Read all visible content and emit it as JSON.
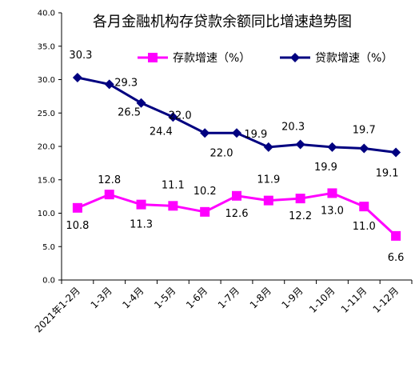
{
  "chart_data": {
    "type": "line",
    "title": "各月金融机构存贷款余额同比增速趋势图",
    "categories": [
      "2021年1-2月",
      "1-3月",
      "1-4月",
      "1-5月",
      "1-6月",
      "1-7月",
      "1-8月",
      "1-9月",
      "1-10月",
      "1-11月",
      "1-12月"
    ],
    "ylim": [
      0,
      40
    ],
    "yticks": [
      "0.0",
      "5.0",
      "10.0",
      "15.0",
      "20.0",
      "25.0",
      "30.0",
      "35.0",
      "40.0"
    ],
    "series": [
      {
        "name": "存款增速（%）",
        "color": "#ff00ff",
        "marker": "square",
        "values": [
          10.8,
          12.8,
          11.3,
          11.1,
          10.2,
          12.6,
          11.9,
          12.2,
          13.0,
          11.0,
          6.6
        ],
        "labels": [
          "10.8",
          "12.8",
          "11.3",
          "11.1",
          "10.2",
          "12.6",
          "11.9",
          "12.2",
          "13.0",
          "11.0",
          "6.6"
        ]
      },
      {
        "name": "贷款增速（%）",
        "color": "#000080",
        "marker": "diamond",
        "values": [
          30.3,
          29.3,
          26.5,
          24.4,
          22.0,
          22.0,
          19.9,
          20.3,
          19.9,
          19.7,
          19.1
        ],
        "labels": [
          "30.3",
          "29.3",
          "26.5",
          "24.4",
          "22.0",
          "22.0",
          "19.9",
          "20.3",
          "19.9",
          "19.7",
          "19.1"
        ]
      }
    ],
    "legend": "top",
    "grid": false
  }
}
